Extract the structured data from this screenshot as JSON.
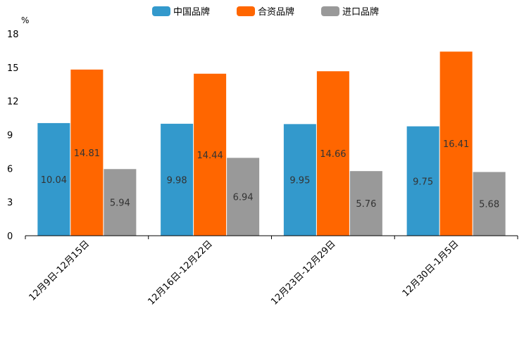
{
  "chart_data": {
    "type": "bar",
    "title": "",
    "ylabel": "%",
    "xlabel": "",
    "ylim": [
      0,
      18
    ],
    "yticks": [
      0,
      3,
      6,
      9,
      12,
      15,
      18
    ],
    "categories": [
      "12月9日-12月15日",
      "12月16日-12月22日",
      "12月23日-12月29日",
      "12月30日-1月5日"
    ],
    "series": [
      {
        "name": "中国品牌",
        "color": "#3399cc",
        "values": [
          10.04,
          9.98,
          9.95,
          9.75
        ]
      },
      {
        "name": "合资品牌",
        "color": "#ff6600",
        "values": [
          14.81,
          14.44,
          14.66,
          16.41
        ]
      },
      {
        "name": "进口品牌",
        "color": "#999999",
        "values": [
          5.94,
          6.94,
          5.76,
          5.68
        ]
      }
    ],
    "legend_position": "top-center",
    "grid": false
  }
}
